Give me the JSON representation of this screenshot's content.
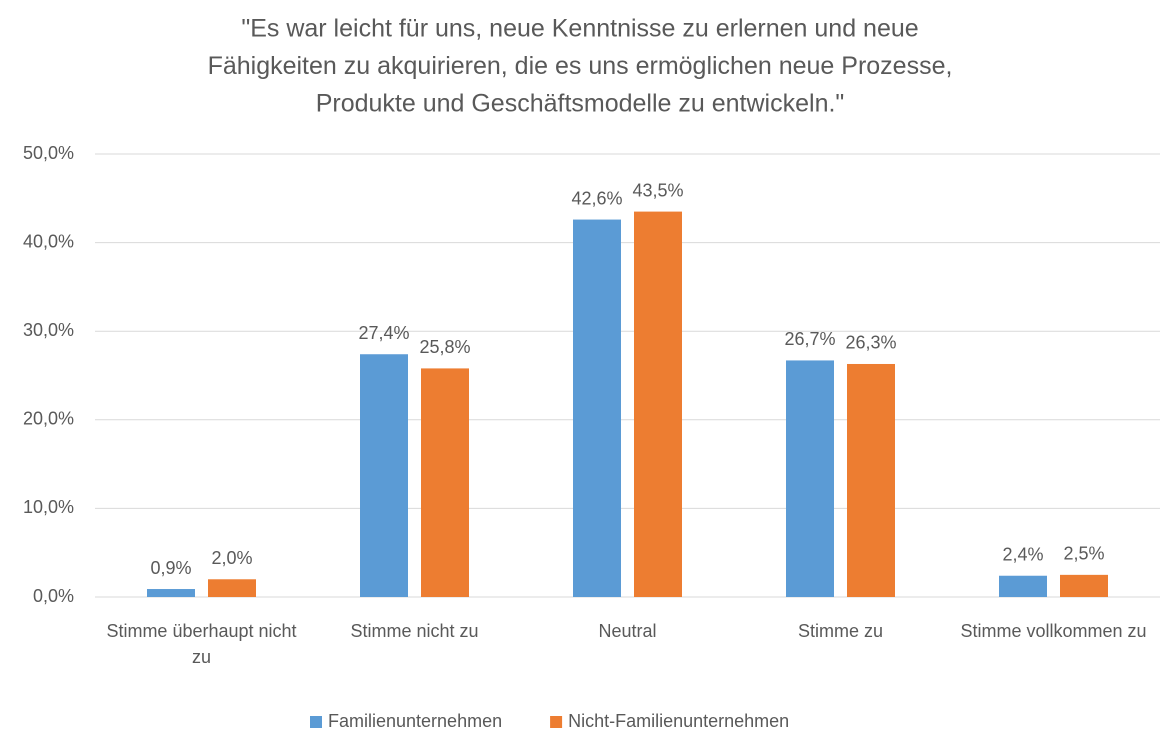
{
  "chart_data": {
    "type": "bar",
    "title": [
      "\"Es war leicht für uns, neue Kenntnisse zu erlernen und neue",
      "Fähigkeiten zu akquirieren, die es uns ermöglichen neue Prozesse,",
      "Produkte und Geschäftsmodelle zu entwickeln.\""
    ],
    "categories": [
      "Stimme überhaupt nicht zu",
      "Stimme nicht zu",
      "Neutral",
      "Stimme zu",
      "Stimme vollkommen zu"
    ],
    "series": [
      {
        "name": "Familienunternehmen",
        "color": "#5b9bd5",
        "values": [
          0.9,
          27.4,
          42.6,
          26.7,
          2.4
        ],
        "value_labels": [
          "0,9%",
          "27,4%",
          "42,6%",
          "26,7%",
          "2,4%"
        ]
      },
      {
        "name": "Nicht-Familienunternehmen",
        "color": "#ed7d31",
        "values": [
          2.0,
          25.8,
          43.5,
          26.3,
          2.5
        ],
        "value_labels": [
          "2,0%",
          "25,8%",
          "43,5%",
          "26,3%",
          "2,5%"
        ]
      }
    ],
    "ylim": [
      0,
      50
    ],
    "yticks": [
      {
        "value": 0,
        "label": "0,0%"
      },
      {
        "value": 10,
        "label": "10,0%"
      },
      {
        "value": 20,
        "label": "20,0%"
      },
      {
        "value": 30,
        "label": "30,0%"
      },
      {
        "value": 40,
        "label": "40,0%"
      },
      {
        "value": 50,
        "label": "50,0%"
      }
    ],
    "grid": true,
    "legend": "bottom"
  }
}
